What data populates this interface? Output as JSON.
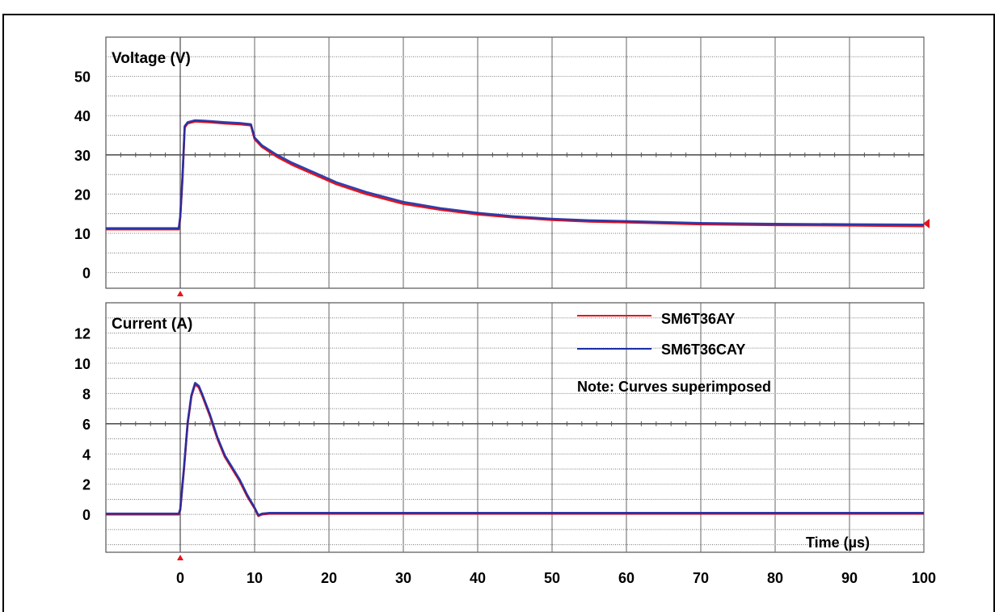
{
  "chart_data": [
    {
      "type": "line",
      "title": "Voltage (V)",
      "xlabel": "",
      "ylabel": "",
      "xlim": [
        -10,
        100
      ],
      "ylim": [
        -4,
        60
      ],
      "yticks": [
        0,
        10,
        20,
        30,
        40,
        50
      ],
      "grid": true,
      "series": [
        {
          "name": "SM6T36AY",
          "color": "#e8141c",
          "x": [
            -10,
            -0.2,
            0,
            0.3,
            0.6,
            1,
            2,
            4,
            6,
            8,
            9.5,
            10,
            11,
            13,
            15,
            18,
            21,
            25,
            30,
            35,
            40,
            45,
            50,
            55,
            60,
            70,
            80,
            90,
            100
          ],
          "y": [
            11,
            11,
            14,
            24,
            37,
            38,
            38.5,
            38.3,
            38,
            37.8,
            37.5,
            34,
            32,
            29.5,
            27.5,
            25,
            22.5,
            20,
            17.5,
            16,
            14.8,
            14,
            13.4,
            13,
            12.8,
            12.3,
            12.1,
            12,
            11.8
          ]
        },
        {
          "name": "SM6T36CAY",
          "color": "#1a2ea8",
          "x": [
            -10,
            -0.2,
            0,
            0.3,
            0.6,
            1,
            2,
            4,
            6,
            8,
            9.5,
            10,
            11,
            13,
            15,
            18,
            21,
            25,
            30,
            35,
            40,
            45,
            50,
            55,
            60,
            70,
            80,
            90,
            100
          ],
          "y": [
            11.3,
            11.3,
            14.3,
            24.5,
            37.3,
            38.3,
            38.8,
            38.6,
            38.3,
            38.1,
            37.8,
            34.4,
            32.4,
            30,
            28,
            25.5,
            23,
            20.5,
            18,
            16.4,
            15.2,
            14.3,
            13.7,
            13.3,
            13.1,
            12.6,
            12.4,
            12.3,
            12.2
          ]
        }
      ]
    },
    {
      "type": "line",
      "title": "Current (A)",
      "xlabel": "Time (µs)",
      "ylabel": "",
      "xlim": [
        -10,
        100
      ],
      "ylim": [
        -2.5,
        14
      ],
      "yticks": [
        0,
        2,
        4,
        6,
        8,
        10,
        12
      ],
      "xticks": [
        0,
        10,
        20,
        30,
        40,
        50,
        60,
        70,
        80,
        90,
        100
      ],
      "grid": true,
      "series": [
        {
          "name": "SM6T36AY",
          "color": "#e8141c",
          "x": [
            -10,
            -0.2,
            0,
            0.5,
            1,
            1.5,
            2,
            2.5,
            3,
            4,
            5,
            6,
            7,
            8,
            9,
            10,
            10.5,
            11,
            12,
            13,
            14,
            20,
            40,
            60,
            80,
            100
          ],
          "y": [
            0,
            0,
            0.3,
            3,
            6,
            7.8,
            8.6,
            8.4,
            7.8,
            6.5,
            5,
            3.8,
            3,
            2.2,
            1.2,
            0.4,
            -0.1,
            0,
            0.05,
            0.05,
            0.05,
            0.05,
            0.05,
            0.05,
            0.05,
            0.05
          ]
        },
        {
          "name": "SM6T36CAY",
          "color": "#1a2ea8",
          "x": [
            -10,
            -0.2,
            0,
            0.5,
            1,
            1.5,
            2,
            2.5,
            3,
            4,
            5,
            6,
            7,
            8,
            9,
            10,
            10.5,
            11,
            12,
            13,
            14,
            20,
            40,
            60,
            80,
            100
          ],
          "y": [
            0.05,
            0.05,
            0.35,
            3.1,
            6.1,
            7.9,
            8.7,
            8.5,
            7.9,
            6.6,
            5.1,
            3.9,
            3.1,
            2.3,
            1.3,
            0.45,
            -0.05,
            0.05,
            0.1,
            0.1,
            0.1,
            0.1,
            0.1,
            0.1,
            0.1,
            0.1
          ]
        }
      ],
      "legend": {
        "position": "top-right",
        "entries": [
          {
            "label": "SM6T36AY",
            "color": "#e8141c"
          },
          {
            "label": "SM6T36CAY",
            "color": "#1a2ea8"
          }
        ]
      },
      "annotation": "Note: Curves superimposed"
    }
  ]
}
